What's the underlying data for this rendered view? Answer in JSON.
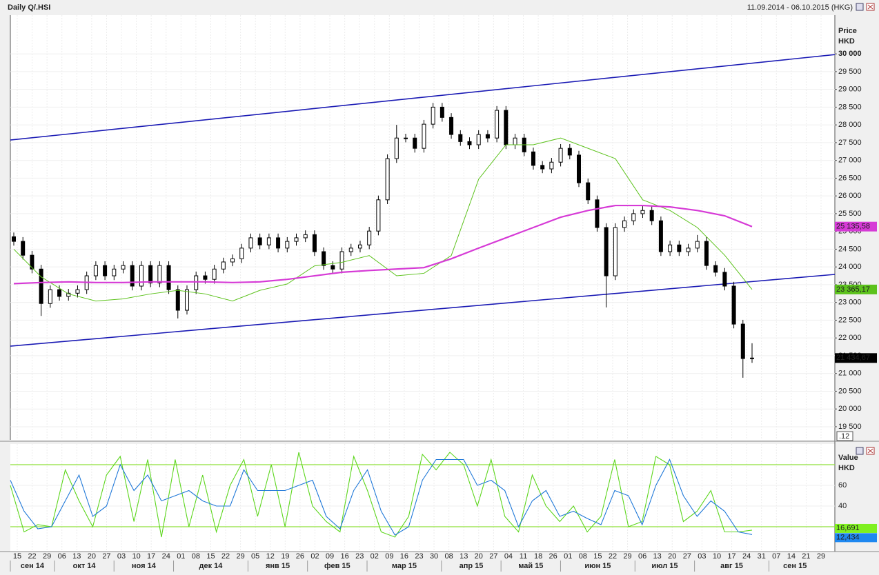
{
  "chart_data": {
    "type": "candlestick",
    "title": "Daily Q/.HSI",
    "subtitle": "11.09.2014 - 06.10.2015 (HKG)",
    "y_axis_label": "Price",
    "y_axis_unit": "HKD",
    "ylim": [
      19130,
      31090
    ],
    "yticks": [
      {
        "value": 19500,
        "label": "19 500"
      },
      {
        "value": 20000,
        "label": "20 000"
      },
      {
        "value": 20500,
        "label": "20 500"
      },
      {
        "value": 21000,
        "label": "21 000"
      },
      {
        "value": 21500,
        "label": "21 500"
      },
      {
        "value": 22000,
        "label": "22 000"
      },
      {
        "value": 22500,
        "label": "22 500"
      },
      {
        "value": 23000,
        "label": "23 000"
      },
      {
        "value": 23500,
        "label": "23 500"
      },
      {
        "value": 24000,
        "label": "24 000"
      },
      {
        "value": 24500,
        "label": "24 500"
      },
      {
        "value": 25000,
        "label": "25 000"
      },
      {
        "value": 25500,
        "label": "25 500"
      },
      {
        "value": 26000,
        "label": "26 000"
      },
      {
        "value": 26500,
        "label": "26 500"
      },
      {
        "value": 27000,
        "label": "27 000"
      },
      {
        "value": 27500,
        "label": "27 500"
      },
      {
        "value": 28000,
        "label": "28 000"
      },
      {
        "value": 28500,
        "label": "28 500"
      },
      {
        "value": 29000,
        "label": "29 000"
      },
      {
        "value": 29500,
        "label": "29 500"
      },
      {
        "value": 30000,
        "label": "30 000"
      }
    ],
    "corner_label": ".12",
    "up_color": "#ffffff",
    "down_color": "#000000",
    "open": [
      24850,
      24720,
      24330,
      23940,
      22970,
      23360,
      23170,
      23260,
      23360,
      23750,
      24040,
      23750,
      23940,
      24040,
      23460,
      24040,
      23550,
      24040,
      23360,
      22780,
      23360,
      23750,
      23650,
      23940,
      24140,
      24230,
      24530,
      24820,
      24620,
      24820,
      24530,
      24720,
      24820,
      24910,
      24430,
      24040,
      23940,
      24430,
      24530,
      24620,
      25010,
      25890,
      27050,
      27630,
      27630,
      27340,
      28020,
      28500,
      28210,
      27730,
      27530,
      27440,
      27730,
      27630,
      28410,
      27440,
      27630,
      27240,
      26860,
      26760,
      26950,
      27340,
      27150,
      26370,
      25890,
      25110,
      23750,
      25110,
      25300,
      25500,
      25590,
      25300,
      24430,
      24620,
      24430,
      24530,
      24720,
      24040,
      23850,
      23460,
      22390,
      21420
    ],
    "high": [
      24970,
      24840,
      24450,
      24060,
      23480,
      23480,
      23380,
      23480,
      23870,
      24160,
      24160,
      24060,
      24160,
      24160,
      24160,
      24160,
      24160,
      24160,
      23480,
      23480,
      23870,
      23870,
      24060,
      24260,
      24350,
      24650,
      24940,
      24940,
      24940,
      24940,
      24840,
      24940,
      25030,
      25030,
      24550,
      24160,
      24550,
      24650,
      24740,
      25130,
      26010,
      27170,
      28000,
      27750,
      27750,
      28140,
      28620,
      28620,
      28330,
      27850,
      27650,
      27850,
      27850,
      28530,
      28530,
      27750,
      27750,
      27360,
      26980,
      27070,
      27460,
      27460,
      27270,
      26490,
      26010,
      25230,
      25230,
      25420,
      25620,
      25710,
      25710,
      25420,
      24740,
      24740,
      24650,
      24900,
      24840,
      24160,
      23970,
      23580,
      22510,
      21850
    ],
    "low": [
      24600,
      24210,
      23820,
      22620,
      22850,
      23050,
      23050,
      23140,
      23240,
      23630,
      23630,
      23630,
      23820,
      23340,
      23340,
      23430,
      23430,
      23240,
      22550,
      22660,
      23240,
      23530,
      23530,
      23820,
      24020,
      24110,
      24410,
      24500,
      24500,
      24410,
      24410,
      24600,
      24700,
      24310,
      23920,
      23820,
      23820,
      24310,
      24410,
      24500,
      24890,
      25770,
      26930,
      27510,
      27220,
      27220,
      27900,
      28090,
      27610,
      27410,
      27320,
      27320,
      27510,
      27510,
      27320,
      27320,
      27120,
      26740,
      26640,
      26640,
      26830,
      27030,
      26250,
      25770,
      24990,
      22860,
      23630,
      24990,
      25180,
      25380,
      25180,
      24310,
      24310,
      24310,
      24310,
      24410,
      23920,
      23730,
      23340,
      22270,
      20880,
      21300
    ],
    "close": [
      24720,
      24330,
      23940,
      22970,
      23360,
      23170,
      23260,
      23360,
      23750,
      24040,
      23750,
      23940,
      24040,
      23460,
      24040,
      23550,
      24040,
      23360,
      22780,
      23360,
      23750,
      23650,
      23940,
      24140,
      24230,
      24530,
      24820,
      24620,
      24820,
      24530,
      24720,
      24820,
      24910,
      24430,
      24040,
      23940,
      24430,
      24530,
      24620,
      25010,
      25890,
      27050,
      27630,
      27630,
      27340,
      28020,
      28500,
      28210,
      27730,
      27530,
      27440,
      27730,
      27630,
      28410,
      27440,
      27630,
      27240,
      26860,
      26760,
      26950,
      27340,
      27150,
      26370,
      25890,
      25110,
      23750,
      25110,
      25300,
      25500,
      25590,
      25300,
      24430,
      24620,
      24430,
      24530,
      24720,
      24040,
      23850,
      23460,
      22390,
      21420,
      21435
    ],
    "series": [
      {
        "name": "ma-short",
        "color": "#5cc21c",
        "values": [
          24500,
          23720,
          23240,
          23040,
          23100,
          23240,
          23340,
          23240,
          23040,
          23340,
          23520,
          24030,
          24130,
          24320,
          23750,
          23820,
          24320,
          26470,
          27440,
          27440,
          27630,
          27340,
          27050,
          25890,
          25590,
          25110,
          24330,
          23365.17
        ],
        "value_label": "23 365,17"
      },
      {
        "name": "ma-long",
        "color": "#d63ad6",
        "values": [
          23530,
          23560,
          23580,
          23560,
          23560,
          23580,
          23580,
          23580,
          23560,
          23580,
          23650,
          23750,
          23850,
          23900,
          23940,
          23980,
          24230,
          24530,
          24820,
          25110,
          25400,
          25590,
          25730,
          25730,
          25690,
          25590,
          25440,
          25135.58
        ],
        "value_label": "25 135,58"
      }
    ],
    "last_value": 21434.67,
    "last_value_label": "21 434,67",
    "channel_color": "#1a1ab4",
    "channels": [
      [
        27574,
        29980
      ],
      [
        21770,
        23790
      ]
    ],
    "x_ticks": [
      "15",
      "22",
      "29",
      "06",
      "13",
      "20",
      "27",
      "03",
      "10",
      "17",
      "24",
      "01",
      "08",
      "15",
      "22",
      "29",
      "05",
      "12",
      "19",
      "26",
      "02",
      "09",
      "16",
      "23",
      "02",
      "09",
      "16",
      "23",
      "30",
      "08",
      "13",
      "20",
      "27",
      "04",
      "11",
      "18",
      "26",
      "01",
      "08",
      "15",
      "22",
      "29",
      "06",
      "13",
      "20",
      "27",
      "03",
      "10",
      "17",
      "24",
      "31",
      "07",
      "14",
      "21",
      "29"
    ],
    "months": [
      "сен 14",
      "окт 14",
      "ноя 14",
      "дек 14",
      "янв 15",
      "фев 15",
      "мар 15",
      "апр 15",
      "май 15",
      "июн 15",
      "июл 15",
      "авг 15",
      "сен 15"
    ],
    "oscillator": {
      "y_axis_label": "Value",
      "y_axis_unit": "HKD",
      "ylim": [
        0,
        100
      ],
      "yticks": [
        40,
        60
      ],
      "levels": [
        20,
        80
      ],
      "level_color": "#8fe03a",
      "series": [
        {
          "name": "k",
          "color": "#5cd61c",
          "values": [
            60,
            15,
            22,
            20,
            75,
            45,
            20,
            70,
            88,
            25,
            85,
            10,
            85,
            20,
            70,
            15,
            60,
            85,
            30,
            80,
            20,
            92,
            40,
            25,
            15,
            88,
            55,
            15,
            10,
            30,
            90,
            75,
            92,
            80,
            40,
            85,
            30,
            15,
            70,
            40,
            25,
            40,
            15,
            30,
            85,
            20,
            25,
            88,
            80,
            25,
            35,
            55,
            15,
            15,
            16.691
          ],
          "value_label": "16,691"
        },
        {
          "name": "d",
          "color": "#1f78d8",
          "values": [
            65,
            35,
            18,
            20,
            45,
            70,
            30,
            40,
            80,
            55,
            70,
            45,
            50,
            55,
            45,
            40,
            40,
            75,
            55,
            55,
            55,
            60,
            65,
            30,
            18,
            55,
            75,
            35,
            12,
            20,
            65,
            85,
            85,
            85,
            60,
            65,
            55,
            20,
            45,
            55,
            30,
            35,
            28,
            22,
            55,
            50,
            22,
            60,
            85,
            50,
            30,
            45,
            35,
            15,
            12.434
          ],
          "value_label": "12,434"
        }
      ]
    }
  }
}
